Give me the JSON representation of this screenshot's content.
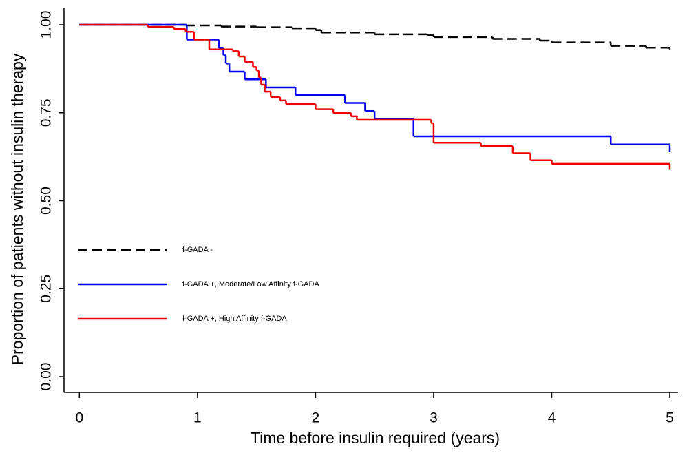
{
  "chart_data": {
    "type": "line",
    "step": "post",
    "x_label": "Time before insulin required (years)",
    "y_label": "Proportion of patients without insulin therapy",
    "xlim": [
      -0.13,
      5.07
    ],
    "ylim": [
      -0.045,
      1.047
    ],
    "xticks": [
      0,
      1,
      2,
      3,
      4,
      5
    ],
    "yticks": [
      {
        "value": 0,
        "label": "0.00"
      },
      {
        "value": 0.25,
        "label": "0.25"
      },
      {
        "value": 0.5,
        "label": "0.50"
      },
      {
        "value": 0.75,
        "label": "0.75"
      },
      {
        "value": 1,
        "label": "1.00"
      }
    ],
    "grid": false,
    "legend": "left",
    "series": [
      {
        "name": "f-GADA -",
        "color": "#000000",
        "dashed": true,
        "x": [
          0,
          0.9,
          1.2,
          1.5,
          1.8,
          2,
          2.05,
          2.5,
          2.95,
          3,
          3.5,
          3.9,
          4,
          4.5,
          4.8,
          5
        ],
        "values": [
          1,
          0.998,
          0.995,
          0.993,
          0.99,
          0.985,
          0.978,
          0.973,
          0.97,
          0.965,
          0.96,
          0.955,
          0.95,
          0.94,
          0.935,
          0.93
        ]
      },
      {
        "name": "f-GADA +, Moderate/Low Affinity f-GADA",
        "color": "#0000ee",
        "dashed": false,
        "x": [
          0,
          0.91,
          1.18,
          1.22,
          1.24,
          1.27,
          1.4,
          1.58,
          1.83,
          2.25,
          2.42,
          2.5,
          2.83,
          4.5,
          5
        ],
        "values": [
          1,
          0.958,
          0.935,
          0.913,
          0.89,
          0.867,
          0.845,
          0.822,
          0.8,
          0.778,
          0.755,
          0.733,
          0.683,
          0.66,
          0.638
        ]
      },
      {
        "name": "f-GADA +, High Affinity f-GADA",
        "color": "#ee0000",
        "dashed": false,
        "x": [
          0,
          0.58,
          0.8,
          0.9,
          0.97,
          1.1,
          1.3,
          1.35,
          1.4,
          1.47,
          1.5,
          1.52,
          1.54,
          1.57,
          1.62,
          1.7,
          1.75,
          2,
          2.15,
          2.3,
          2.35,
          2.98,
          3,
          3.4,
          3.67,
          3.82,
          4,
          5
        ],
        "values": [
          1,
          0.994,
          0.988,
          0.98,
          0.958,
          0.93,
          0.925,
          0.91,
          0.895,
          0.88,
          0.87,
          0.85,
          0.83,
          0.81,
          0.795,
          0.785,
          0.775,
          0.76,
          0.75,
          0.74,
          0.73,
          0.72,
          0.665,
          0.655,
          0.635,
          0.615,
          0.605,
          0.588
        ]
      }
    ]
  }
}
